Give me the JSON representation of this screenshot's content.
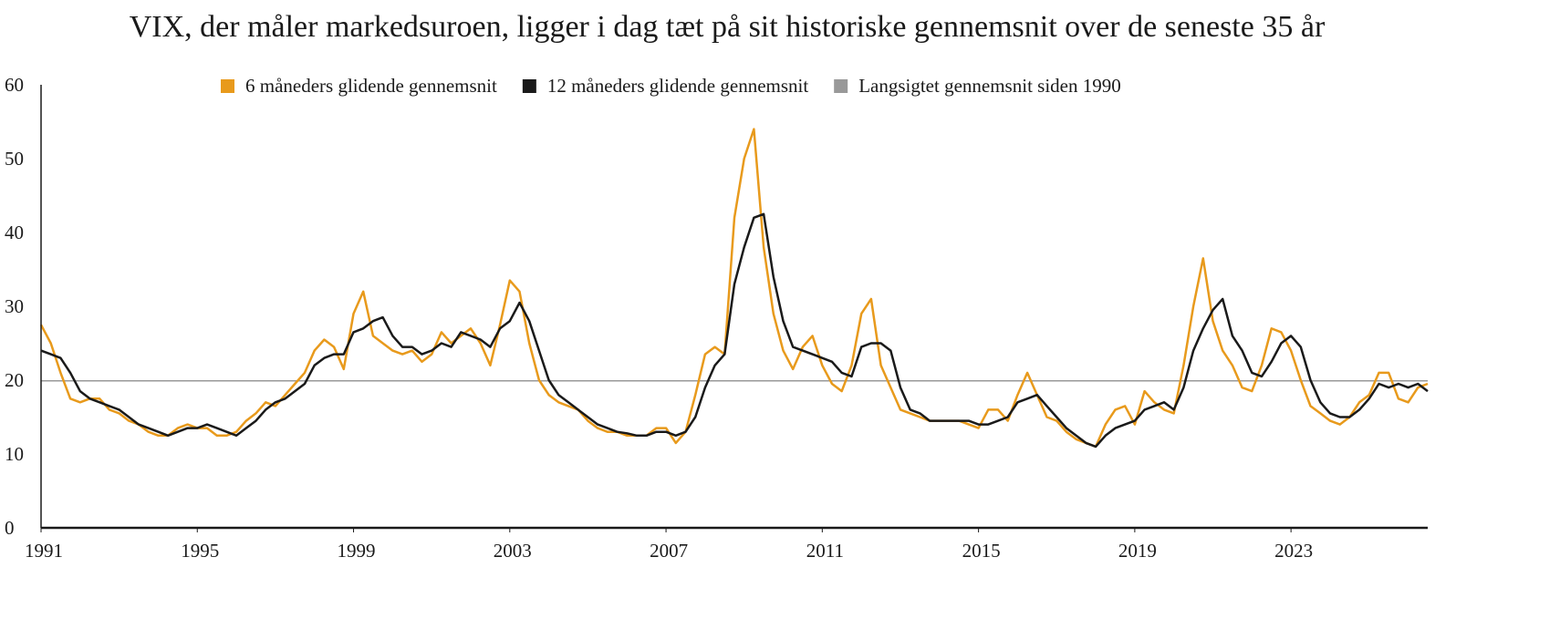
{
  "chart_data": {
    "type": "line",
    "title": "VIX, der måler markedsuroen, ligger i dag tæt på sit historiske gennemsnit over de seneste 35 år",
    "x": [
      1991,
      1991.25,
      1991.5,
      1991.75,
      1992,
      1992.25,
      1992.5,
      1992.75,
      1993,
      1993.25,
      1993.5,
      1993.75,
      1994,
      1994.25,
      1994.5,
      1994.75,
      1995,
      1995.25,
      1995.5,
      1995.75,
      1996,
      1996.25,
      1996.5,
      1996.75,
      1997,
      1997.25,
      1997.5,
      1997.75,
      1998,
      1998.25,
      1998.5,
      1998.75,
      1999,
      1999.25,
      1999.5,
      1999.75,
      2000,
      2000.25,
      2000.5,
      2000.75,
      2001,
      2001.25,
      2001.5,
      2001.75,
      2002,
      2002.25,
      2002.5,
      2002.75,
      2003,
      2003.25,
      2003.5,
      2003.75,
      2004,
      2004.25,
      2004.5,
      2004.75,
      2005,
      2005.25,
      2005.5,
      2005.75,
      2006,
      2006.25,
      2006.5,
      2006.75,
      2007,
      2007.25,
      2007.5,
      2007.75,
      2008,
      2008.25,
      2008.5,
      2008.75,
      2009,
      2009.25,
      2009.5,
      2009.75,
      2010,
      2010.25,
      2010.5,
      2010.75,
      2011,
      2011.25,
      2011.5,
      2011.75,
      2012,
      2012.25,
      2012.5,
      2012.75,
      2013,
      2013.25,
      2013.5,
      2013.75,
      2014,
      2014.25,
      2014.5,
      2014.75,
      2015,
      2015.25,
      2015.5,
      2015.75,
      2016,
      2016.25,
      2016.5,
      2016.75,
      2017,
      2017.25,
      2017.5,
      2017.75,
      2018,
      2018.25,
      2018.5,
      2018.75,
      2019,
      2019.25,
      2019.5,
      2019.75,
      2020,
      2020.25,
      2020.5,
      2020.75,
      2021,
      2021.25,
      2021.5,
      2021.75,
      2022,
      2022.25,
      2022.5,
      2022.75,
      2023,
      2023.25,
      2023.5,
      2023.75,
      2024,
      2024.25,
      2024.5,
      2024.75,
      2025,
      2025.25,
      2025.5,
      2025.75,
      2026,
      2026.25,
      2026.5
    ],
    "series": [
      {
        "name": "6 måneders glidende gennemsnit",
        "color": "#e89a1c",
        "values": [
          27.5,
          25,
          21,
          17.5,
          17,
          17.5,
          17.5,
          16,
          15.5,
          14.5,
          14,
          13,
          12.5,
          12.5,
          13.5,
          14,
          13.5,
          13.5,
          12.5,
          12.5,
          13,
          14.5,
          15.5,
          17,
          16.5,
          18,
          19.5,
          21,
          24,
          25.5,
          24.5,
          21.5,
          29,
          32,
          26,
          25,
          24,
          23.5,
          24,
          22.5,
          23.5,
          26.5,
          25,
          26,
          27,
          25,
          22,
          27.5,
          33.5,
          32,
          25,
          20,
          18,
          17,
          16.5,
          16,
          14.5,
          13.5,
          13,
          13,
          12.5,
          12.5,
          12.5,
          13.5,
          13.5,
          11.5,
          13,
          18,
          23.5,
          24.5,
          23.5,
          42,
          50,
          54,
          38,
          29,
          24,
          21.5,
          24.5,
          26,
          22,
          19.5,
          18.5,
          22,
          29,
          31,
          22,
          19,
          16,
          15.5,
          15,
          14.5,
          14.5,
          14.5,
          14.5,
          14,
          13.5,
          16,
          16,
          14.5,
          18,
          21,
          18,
          15,
          14.5,
          13,
          12,
          11.5,
          11,
          14,
          16,
          16.5,
          14,
          18.5,
          17,
          16,
          15.5,
          22,
          30,
          36.5,
          28,
          24,
          22,
          19,
          18.5,
          22,
          27,
          26.5,
          24,
          20,
          16.5,
          15.5,
          14.5,
          14,
          15,
          17,
          18,
          21,
          21,
          17.5,
          17,
          19,
          19.5
        ]
      },
      {
        "name": "12 måneders glidende gennemsnit",
        "color": "#1a1a1a",
        "values": [
          24,
          23.5,
          23,
          21,
          18.5,
          17.5,
          17,
          16.5,
          16,
          15,
          14,
          13.5,
          13,
          12.5,
          13,
          13.5,
          13.5,
          14,
          13.5,
          13,
          12.5,
          13.5,
          14.5,
          16,
          17,
          17.5,
          18.5,
          19.5,
          22,
          23,
          23.5,
          23.5,
          26.5,
          27,
          28,
          28.5,
          26,
          24.5,
          24.5,
          23.5,
          24,
          25,
          24.5,
          26.5,
          26,
          25.5,
          24.5,
          27,
          28,
          30.5,
          28,
          24,
          20,
          18,
          17,
          16,
          15,
          14,
          13.5,
          13,
          12.8,
          12.5,
          12.5,
          13,
          13,
          12.5,
          13,
          15,
          19,
          22,
          23.5,
          33,
          38,
          42,
          42.5,
          34,
          28,
          24.5,
          24,
          23.5,
          23,
          22.5,
          21,
          20.5,
          24.5,
          25,
          25,
          24,
          19,
          16,
          15.5,
          14.5,
          14.5,
          14.5,
          14.5,
          14.5,
          14,
          14,
          14.5,
          15,
          17,
          17.5,
          18,
          16.5,
          15,
          13.5,
          12.5,
          11.5,
          11,
          12.5,
          13.5,
          14,
          14.5,
          16,
          16.5,
          17,
          16,
          19,
          24,
          27,
          29.5,
          31,
          26,
          24,
          21,
          20.5,
          22.5,
          25,
          26,
          24.5,
          20,
          17,
          15.5,
          15,
          15,
          16,
          17.5,
          19.5,
          19,
          19.5,
          19,
          19.5,
          18.5
        ]
      }
    ],
    "reference_line": {
      "name": "Langsigtet gennemsnit siden 1990",
      "color": "#999999",
      "value": 19.9
    },
    "xlim": [
      1991,
      2026.5
    ],
    "xticks": [
      1991,
      1995,
      1999,
      2003,
      2007,
      2011,
      2015,
      2019,
      2023
    ],
    "ylim": [
      0,
      60
    ],
    "yticks": [
      0,
      10,
      20,
      30,
      40,
      50,
      60
    ],
    "legend": "top"
  }
}
